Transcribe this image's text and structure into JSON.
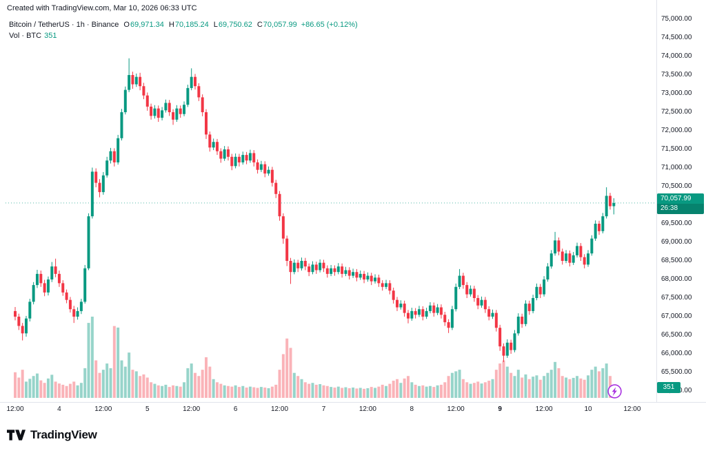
{
  "attribution": "Created with TradingView.com, Mar 10, 2026 06:33 UTC",
  "legend": {
    "title": "Bitcoin / TetherUS · 1h · Binance",
    "o_label": "O",
    "open": "69,971.34",
    "h_label": "H",
    "high": "70,185.24",
    "l_label": "L",
    "low": "69,750.62",
    "c_label": "C",
    "close": "70,057.99",
    "change": "+86.65 (+0.12%)",
    "vol_label": "Vol · BTC",
    "vol_value": "351"
  },
  "price_axis": {
    "badge_price": "70,057.99",
    "badge_countdown": "26:38",
    "volume_badge": "351"
  },
  "logo": {
    "text": "TradingView"
  },
  "colors": {
    "up": "#089981",
    "down": "#f23645",
    "vol_up": "rgba(8,153,129,0.42)",
    "vol_down": "rgba(242,54,69,0.38)",
    "axis_border": "#e0e3eb",
    "badge_bg": "#089981",
    "flash_purple": "#a832e0"
  },
  "chart_data": {
    "type": "candlestick",
    "title": "Bitcoin / TetherUS, 1h, Binance",
    "symbol": "Bitcoin / TetherUS",
    "interval": "1h",
    "exchange": "Binance",
    "ylabel": "Price (USDT)",
    "price_axis_range": [
      65000,
      75000
    ],
    "price_tick_step": 500,
    "start_time": "Mar 3 12:00",
    "interval_hours": 1,
    "last_price": 70057.99,
    "last_candle": {
      "open": 69971.34,
      "high": 70185.24,
      "low": 69750.62,
      "close": 70057.99,
      "change": 86.65,
      "change_pct": 0.12,
      "volume_btc": 351
    },
    "price_labels": [
      "75,000.00",
      "74,500.00",
      "74,000.00",
      "73,500.00",
      "73,000.00",
      "72,500.00",
      "72,000.00",
      "71,500.00",
      "71,000.00",
      "70,500.00",
      "70,000.00",
      "69,500.00",
      "69,000.00",
      "68,500.00",
      "68,000.00",
      "67,500.00",
      "67,000.00",
      "66,500.00",
      "66,000.00",
      "65,500.00",
      "65,000.00"
    ],
    "time_ticks": [
      {
        "index": 0,
        "label": "12:00"
      },
      {
        "index": 12,
        "label": "4"
      },
      {
        "index": 24,
        "label": "12:00"
      },
      {
        "index": 36,
        "label": "5"
      },
      {
        "index": 48,
        "label": "12:00"
      },
      {
        "index": 60,
        "label": "6"
      },
      {
        "index": 72,
        "label": "12:00"
      },
      {
        "index": 84,
        "label": "7"
      },
      {
        "index": 96,
        "label": "12:00"
      },
      {
        "index": 108,
        "label": "8"
      },
      {
        "index": 120,
        "label": "12:00"
      },
      {
        "index": 132,
        "label": "9",
        "bold": true
      },
      {
        "index": 144,
        "label": "12:00"
      },
      {
        "index": 156,
        "label": "10"
      },
      {
        "index": 168,
        "label": "12:00"
      }
    ],
    "candles": [
      [
        67150,
        67260,
        66900,
        67000
      ],
      [
        67000,
        67080,
        66640,
        66750
      ],
      [
        66750,
        66830,
        66360,
        66550
      ],
      [
        66550,
        67020,
        66460,
        66950
      ],
      [
        66950,
        67480,
        66870,
        67400
      ],
      [
        67400,
        67930,
        67330,
        67850
      ],
      [
        67850,
        68260,
        67770,
        68150
      ],
      [
        68150,
        68240,
        67800,
        67900
      ],
      [
        67900,
        67990,
        67550,
        67650
      ],
      [
        67650,
        68080,
        67570,
        68000
      ],
      [
        68000,
        68470,
        67930,
        68350
      ],
      [
        68350,
        68560,
        68060,
        68150
      ],
      [
        68150,
        68240,
        67800,
        67900
      ],
      [
        67900,
        67980,
        67560,
        67650
      ],
      [
        67650,
        67730,
        67360,
        67450
      ],
      [
        67450,
        67530,
        67110,
        67200
      ],
      [
        67200,
        67290,
        66830,
        67000
      ],
      [
        67000,
        67250,
        66920,
        67150
      ],
      [
        67150,
        67480,
        67070,
        67400
      ],
      [
        67400,
        68390,
        67350,
        68300
      ],
      [
        68300,
        69780,
        68250,
        69700
      ],
      [
        69700,
        71010,
        69640,
        70900
      ],
      [
        70900,
        70990,
        70480,
        70600
      ],
      [
        70600,
        70700,
        70210,
        70350
      ],
      [
        70350,
        70890,
        70280,
        70800
      ],
      [
        70800,
        71300,
        70740,
        71200
      ],
      [
        71200,
        71540,
        71120,
        71450
      ],
      [
        71450,
        71530,
        71040,
        71150
      ],
      [
        71150,
        71890,
        71090,
        71800
      ],
      [
        71800,
        72590,
        71740,
        72500
      ],
      [
        72500,
        73190,
        72440,
        73100
      ],
      [
        73100,
        73950,
        73040,
        73500
      ],
      [
        73500,
        73590,
        73130,
        73250
      ],
      [
        73250,
        73540,
        73180,
        73450
      ],
      [
        73450,
        73560,
        73090,
        73200
      ],
      [
        73200,
        73290,
        72850,
        72950
      ],
      [
        72950,
        73030,
        72540,
        72650
      ],
      [
        72650,
        72730,
        72300,
        72400
      ],
      [
        72400,
        72690,
        72330,
        72600
      ],
      [
        72600,
        72680,
        72240,
        72350
      ],
      [
        72350,
        72640,
        72280,
        72550
      ],
      [
        72550,
        72840,
        72490,
        72750
      ],
      [
        72750,
        72830,
        72400,
        72500
      ],
      [
        72500,
        72580,
        72160,
        72300
      ],
      [
        72300,
        72690,
        72240,
        72600
      ],
      [
        72600,
        72680,
        72350,
        72450
      ],
      [
        72450,
        72790,
        72390,
        72700
      ],
      [
        72700,
        73240,
        72640,
        73150
      ],
      [
        73150,
        73680,
        73090,
        73450
      ],
      [
        73450,
        73530,
        73110,
        73200
      ],
      [
        73200,
        73280,
        72800,
        72900
      ],
      [
        72900,
        72980,
        72390,
        72500
      ],
      [
        72500,
        72580,
        71780,
        71900
      ],
      [
        71900,
        71980,
        71440,
        71550
      ],
      [
        71550,
        71790,
        71480,
        71700
      ],
      [
        71700,
        71780,
        71350,
        71450
      ],
      [
        71450,
        71530,
        71140,
        71250
      ],
      [
        71250,
        71590,
        71190,
        71500
      ],
      [
        71500,
        71580,
        71200,
        71300
      ],
      [
        71300,
        71380,
        70940,
        71050
      ],
      [
        71050,
        71390,
        70990,
        71300
      ],
      [
        71300,
        71380,
        71040,
        71150
      ],
      [
        71150,
        71440,
        71090,
        71350
      ],
      [
        71350,
        71430,
        71100,
        71200
      ],
      [
        71200,
        71490,
        71140,
        71400
      ],
      [
        71400,
        71480,
        71040,
        71150
      ],
      [
        71150,
        71230,
        70850,
        70950
      ],
      [
        70950,
        71190,
        70890,
        71100
      ],
      [
        71100,
        71180,
        70750,
        70850
      ],
      [
        70850,
        71040,
        70790,
        70950
      ],
      [
        70950,
        71030,
        70500,
        70600
      ],
      [
        70600,
        70680,
        70190,
        70300
      ],
      [
        70300,
        70380,
        69580,
        69700
      ],
      [
        69700,
        69780,
        68960,
        69100
      ],
      [
        69100,
        69180,
        68360,
        68500
      ],
      [
        68500,
        68580,
        67880,
        68200
      ],
      [
        68200,
        68540,
        68140,
        68450
      ],
      [
        68450,
        68530,
        68200,
        68300
      ],
      [
        68300,
        68590,
        68240,
        68500
      ],
      [
        68500,
        68580,
        68250,
        68350
      ],
      [
        68350,
        68430,
        68090,
        68200
      ],
      [
        68200,
        68490,
        68140,
        68400
      ],
      [
        68400,
        68480,
        68150,
        68250
      ],
      [
        68250,
        68540,
        68190,
        68450
      ],
      [
        68450,
        68530,
        68200,
        68300
      ],
      [
        68300,
        68380,
        68050,
        68150
      ],
      [
        68150,
        68390,
        68090,
        68300
      ],
      [
        68300,
        68380,
        68100,
        68200
      ],
      [
        68200,
        68440,
        68140,
        68350
      ],
      [
        68350,
        68430,
        68050,
        68150
      ],
      [
        68150,
        68340,
        68090,
        68250
      ],
      [
        68250,
        68330,
        68000,
        68100
      ],
      [
        68100,
        68290,
        68040,
        68200
      ],
      [
        68200,
        68280,
        67950,
        68050
      ],
      [
        68050,
        68240,
        67990,
        68150
      ],
      [
        68150,
        68230,
        67900,
        68000
      ],
      [
        68000,
        68190,
        67940,
        68100
      ],
      [
        68100,
        68180,
        67850,
        67950
      ],
      [
        67950,
        68140,
        67890,
        68050
      ],
      [
        68050,
        68130,
        67800,
        67900
      ],
      [
        67900,
        67980,
        67700,
        67800
      ],
      [
        67800,
        67990,
        67740,
        67900
      ],
      [
        67900,
        67980,
        67600,
        67700
      ],
      [
        67700,
        67780,
        67350,
        67450
      ],
      [
        67450,
        67530,
        67150,
        67250
      ],
      [
        67250,
        67440,
        67190,
        67350
      ],
      [
        67350,
        67430,
        67000,
        67100
      ],
      [
        67100,
        67180,
        66820,
        66950
      ],
      [
        66950,
        67240,
        66890,
        67150
      ],
      [
        67150,
        67230,
        66950,
        67050
      ],
      [
        67050,
        67290,
        66990,
        67200
      ],
      [
        67200,
        67280,
        66900,
        67000
      ],
      [
        67000,
        67240,
        66940,
        67150
      ],
      [
        67150,
        67390,
        67090,
        67300
      ],
      [
        67300,
        67380,
        67000,
        67100
      ],
      [
        67100,
        67340,
        67040,
        67250
      ],
      [
        67250,
        67330,
        66950,
        67050
      ],
      [
        67050,
        67130,
        66750,
        66850
      ],
      [
        66850,
        66930,
        66560,
        66700
      ],
      [
        66700,
        67290,
        66640,
        67200
      ],
      [
        67200,
        67890,
        67140,
        67800
      ],
      [
        67800,
        68280,
        67740,
        68100
      ],
      [
        68100,
        68180,
        67750,
        67850
      ],
      [
        67850,
        67930,
        67500,
        67600
      ],
      [
        67600,
        67840,
        67540,
        67750
      ],
      [
        67750,
        67830,
        67400,
        67500
      ],
      [
        67500,
        67580,
        67200,
        67300
      ],
      [
        67300,
        67540,
        67240,
        67450
      ],
      [
        67450,
        67530,
        67100,
        67200
      ],
      [
        67200,
        67280,
        66900,
        67000
      ],
      [
        67000,
        67190,
        66940,
        67100
      ],
      [
        67100,
        67180,
        66600,
        66700
      ],
      [
        66700,
        66780,
        66080,
        66200
      ],
      [
        66200,
        66280,
        65780,
        65950
      ],
      [
        65950,
        66390,
        65890,
        66300
      ],
      [
        66300,
        66380,
        66000,
        66100
      ],
      [
        66100,
        66640,
        66040,
        66550
      ],
      [
        66550,
        67090,
        66490,
        67000
      ],
      [
        67000,
        67080,
        66700,
        66800
      ],
      [
        66800,
        67440,
        66740,
        67350
      ],
      [
        67350,
        67430,
        67050,
        67150
      ],
      [
        67150,
        67590,
        67090,
        67500
      ],
      [
        67500,
        67890,
        67440,
        67800
      ],
      [
        67800,
        67880,
        67500,
        67600
      ],
      [
        67600,
        68090,
        67540,
        68000
      ],
      [
        68000,
        68440,
        67940,
        68350
      ],
      [
        68350,
        68790,
        68290,
        68700
      ],
      [
        68700,
        69280,
        68640,
        69050
      ],
      [
        69050,
        69130,
        68650,
        68750
      ],
      [
        68750,
        68830,
        68400,
        68500
      ],
      [
        68500,
        68790,
        68440,
        68700
      ],
      [
        68700,
        68780,
        68350,
        68450
      ],
      [
        68450,
        68740,
        68390,
        68650
      ],
      [
        68650,
        68990,
        68590,
        68900
      ],
      [
        68900,
        68980,
        68500,
        68600
      ],
      [
        68600,
        68680,
        68300,
        68400
      ],
      [
        68400,
        68790,
        68340,
        68700
      ],
      [
        68700,
        69190,
        68640,
        69100
      ],
      [
        69100,
        69590,
        69040,
        69500
      ],
      [
        69500,
        69580,
        69200,
        69300
      ],
      [
        69300,
        69790,
        69240,
        69700
      ],
      [
        69700,
        70480,
        69640,
        70250
      ],
      [
        70250,
        70330,
        69880,
        69971.34
      ],
      [
        69971.34,
        70185.24,
        69750.62,
        70057.99
      ]
    ],
    "volumes": [
      820,
      650,
      900,
      520,
      610,
      700,
      780,
      560,
      480,
      620,
      740,
      520,
      460,
      420,
      380,
      450,
      520,
      400,
      480,
      950,
      2400,
      2600,
      1200,
      800,
      900,
      1100,
      950,
      2300,
      2250,
      1200,
      1000,
      1450,
      900,
      850,
      700,
      750,
      650,
      500,
      450,
      400,
      380,
      420,
      350,
      400,
      380,
      360,
      500,
      950,
      1100,
      800,
      700,
      900,
      1300,
      1000,
      600,
      500,
      450,
      400,
      380,
      360,
      400,
      350,
      380,
      330,
      360,
      340,
      320,
      350,
      330,
      310,
      360,
      420,
      900,
      1400,
      1900,
      1600,
      800,
      700,
      600,
      500,
      450,
      480,
      420,
      440,
      400,
      380,
      350,
      330,
      360,
      320,
      340,
      310,
      330,
      300,
      320,
      290,
      310,
      350,
      320,
      360,
      420,
      380,
      450,
      550,
      600,
      480,
      620,
      700,
      500,
      420,
      380,
      400,
      360,
      380,
      350,
      400,
      420,
      500,
      700,
      800,
      850,
      900,
      600,
      500,
      450,
      480,
      520,
      460,
      500,
      550,
      600,
      900,
      1100,
      1200,
      1000,
      800,
      700,
      900,
      650,
      750,
      600,
      680,
      720,
      580,
      700,
      800,
      900,
      1150,
      950,
      700,
      650,
      600,
      640,
      700,
      620,
      580,
      720,
      900,
      1000,
      850,
      950,
      1100,
      700,
      351
    ]
  }
}
